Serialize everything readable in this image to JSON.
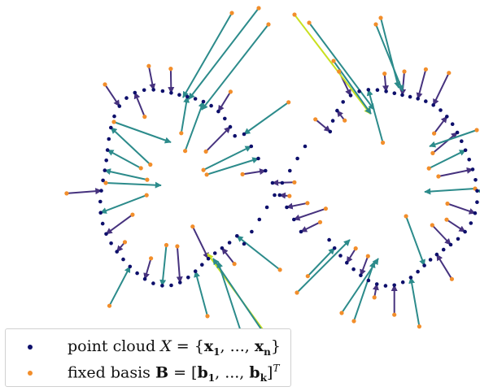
{
  "colors": {
    "point_cloud": "#0d0f6b",
    "basis": "#f28e2b",
    "arrow_short": "#46327e",
    "arrow_mid": "#2c8b8b",
    "arrow_long": "#c9e020"
  },
  "legend": {
    "point_cloud": {
      "text": "point cloud",
      "var": "X",
      "eq": "=",
      "open": "{",
      "first": "x",
      "first_sub": "1",
      "sep": ", ..., ",
      "last": "x",
      "last_sub": "n",
      "close": "}"
    },
    "basis": {
      "text": "fixed basis",
      "var": "B",
      "eq": "=",
      "open": "[",
      "first": "b",
      "first_sub": "1",
      "sep": ", ..., ",
      "last": "b",
      "last_sub": "k",
      "close": "]",
      "sup": "T"
    }
  }
}
